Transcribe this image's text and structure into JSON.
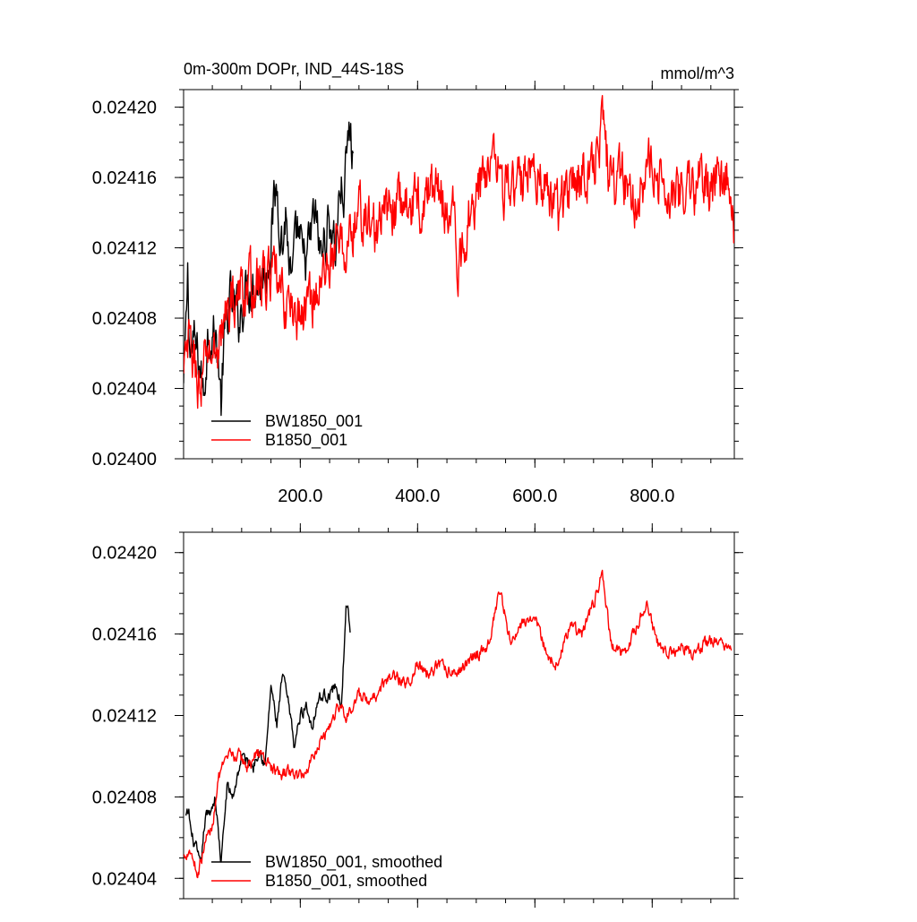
{
  "chart_data": [
    {
      "type": "line",
      "title": "0m-300m DOPr, IND_44S-18S",
      "units_label": "mmol/m^3",
      "xlabel": "",
      "ylabel": "",
      "xlim": [
        1,
        940
      ],
      "ylim": [
        0.024,
        0.02421
      ],
      "x_ticks": [
        200,
        400,
        600,
        800
      ],
      "x_tick_labels": [
        "200.0",
        "400.0",
        "600.0",
        "800.0"
      ],
      "y_ticks": [
        0.024,
        0.02404,
        0.02408,
        0.02412,
        0.02416,
        0.0242
      ],
      "y_tick_labels": [
        "0.02400",
        "0.02404",
        "0.02408",
        "0.02412",
        "0.02416",
        "0.02420"
      ],
      "legend_position": "bottom-left",
      "series": [
        {
          "name": "BW1850_001",
          "color": "#000000",
          "x_end": 290,
          "anchors": [
            [
              1,
              0.02404
            ],
            [
              5,
              0.02407
            ],
            [
              8,
              0.024105
            ],
            [
              12,
              0.02406
            ],
            [
              20,
              0.024065
            ],
            [
              30,
              0.02405
            ],
            [
              35,
              0.024035
            ],
            [
              42,
              0.02407
            ],
            [
              50,
              0.024075
            ],
            [
              60,
              0.02406
            ],
            [
              65,
              0.02403
            ],
            [
              70,
              0.024065
            ],
            [
              80,
              0.02409
            ],
            [
              95,
              0.02408
            ],
            [
              110,
              0.0241
            ],
            [
              130,
              0.0241
            ],
            [
              145,
              0.02411
            ],
            [
              150,
              0.02413
            ],
            [
              160,
              0.024155
            ],
            [
              170,
              0.02412
            ],
            [
              175,
              0.02414
            ],
            [
              185,
              0.024095
            ],
            [
              195,
              0.02413
            ],
            [
              205,
              0.02411
            ],
            [
              215,
              0.02412
            ],
            [
              225,
              0.02414
            ],
            [
              235,
              0.024115
            ],
            [
              245,
              0.02413
            ],
            [
              252,
              0.024135
            ],
            [
              260,
              0.02412
            ],
            [
              268,
              0.024155
            ],
            [
              275,
              0.02415
            ],
            [
              280,
              0.024175
            ],
            [
              285,
              0.02419
            ],
            [
              290,
              0.024165
            ]
          ],
          "noise": 1.2e-05
        },
        {
          "name": "B1850_001",
          "color": "#ff0000",
          "x_end": 940,
          "anchors": [
            [
              1,
              0.024045
            ],
            [
              10,
              0.024065
            ],
            [
              20,
              0.024055
            ],
            [
              30,
              0.024035
            ],
            [
              40,
              0.02406
            ],
            [
              55,
              0.02406
            ],
            [
              70,
              0.024075
            ],
            [
              80,
              0.02409
            ],
            [
              90,
              0.02409
            ],
            [
              100,
              0.024095
            ],
            [
              115,
              0.024098
            ],
            [
              130,
              0.0241
            ],
            [
              150,
              0.024105
            ],
            [
              170,
              0.02409
            ],
            [
              185,
              0.024085
            ],
            [
              200,
              0.02408
            ],
            [
              215,
              0.02409
            ],
            [
              230,
              0.024095
            ],
            [
              250,
              0.024115
            ],
            [
              265,
              0.02412
            ],
            [
              280,
              0.02412
            ],
            [
              300,
              0.02414
            ],
            [
              330,
              0.02413
            ],
            [
              360,
              0.024145
            ],
            [
              400,
              0.024145
            ],
            [
              430,
              0.024155
            ],
            [
              460,
              0.02414
            ],
            [
              470,
              0.024105
            ],
            [
              490,
              0.024145
            ],
            [
              520,
              0.024165
            ],
            [
              530,
              0.02419
            ],
            [
              545,
              0.024155
            ],
            [
              560,
              0.02415
            ],
            [
              580,
              0.02416
            ],
            [
              600,
              0.02417
            ],
            [
              620,
              0.02415
            ],
            [
              640,
              0.02414
            ],
            [
              660,
              0.02416
            ],
            [
              680,
              0.02416
            ],
            [
              700,
              0.02417
            ],
            [
              715,
              0.02419
            ],
            [
              730,
              0.024155
            ],
            [
              750,
              0.02416
            ],
            [
              770,
              0.02415
            ],
            [
              790,
              0.024165
            ],
            [
              810,
              0.024155
            ],
            [
              830,
              0.024155
            ],
            [
              850,
              0.02415
            ],
            [
              870,
              0.024155
            ],
            [
              890,
              0.024155
            ],
            [
              910,
              0.02416
            ],
            [
              930,
              0.02416
            ],
            [
              940,
              0.02413
            ]
          ],
          "noise": 1.3e-05
        }
      ]
    },
    {
      "type": "line",
      "title": "",
      "xlabel": "",
      "ylabel": "",
      "xlim": [
        1,
        940
      ],
      "ylim": [
        0.02403,
        0.02421
      ],
      "x_ticks": [
        200,
        400,
        600,
        800
      ],
      "x_tick_labels": [
        "",
        "",
        "",
        ""
      ],
      "y_ticks": [
        0.02404,
        0.02408,
        0.02412,
        0.02416,
        0.0242
      ],
      "y_tick_labels": [
        "0.02404",
        "0.02408",
        "0.02412",
        "0.02416",
        "0.02420"
      ],
      "legend_position": "bottom-left",
      "series": [
        {
          "name": "BW1850_001, smoothed",
          "color": "#000000",
          "x_end": 285,
          "anchors": [
            [
              5,
              0.02407
            ],
            [
              10,
              0.024072
            ],
            [
              15,
              0.02406
            ],
            [
              22,
              0.024055
            ],
            [
              30,
              0.024045
            ],
            [
              38,
              0.02407
            ],
            [
              45,
              0.024072
            ],
            [
              55,
              0.02408
            ],
            [
              65,
              0.024047
            ],
            [
              75,
              0.024085
            ],
            [
              85,
              0.02408
            ],
            [
              100,
              0.0241
            ],
            [
              120,
              0.024095
            ],
            [
              130,
              0.024105
            ],
            [
              140,
              0.024095
            ],
            [
              150,
              0.024135
            ],
            [
              155,
              0.024125
            ],
            [
              160,
              0.024115
            ],
            [
              170,
              0.02414
            ],
            [
              180,
              0.024125
            ],
            [
              190,
              0.024105
            ],
            [
              200,
              0.02412
            ],
            [
              210,
              0.024125
            ],
            [
              220,
              0.024115
            ],
            [
              230,
              0.024128
            ],
            [
              240,
              0.02413
            ],
            [
              250,
              0.02413
            ],
            [
              260,
              0.024135
            ],
            [
              270,
              0.024125
            ],
            [
              278,
              0.024172
            ],
            [
              282,
              0.02417
            ],
            [
              285,
              0.02416
            ]
          ],
          "noise": 2.5e-06
        },
        {
          "name": "B1850_001, smoothed",
          "color": "#ff0000",
          "x_end": 935,
          "anchors": [
            [
              1,
              0.02405
            ],
            [
              10,
              0.024055
            ],
            [
              15,
              0.024052
            ],
            [
              25,
              0.024042
            ],
            [
              40,
              0.02406
            ],
            [
              50,
              0.024065
            ],
            [
              60,
              0.02409
            ],
            [
              70,
              0.024095
            ],
            [
              80,
              0.0241
            ],
            [
              95,
              0.0241
            ],
            [
              110,
              0.024095
            ],
            [
              130,
              0.024102
            ],
            [
              150,
              0.024095
            ],
            [
              165,
              0.02409
            ],
            [
              180,
              0.024093
            ],
            [
              195,
              0.02409
            ],
            [
              210,
              0.024092
            ],
            [
              220,
              0.0241
            ],
            [
              235,
              0.024108
            ],
            [
              250,
              0.024115
            ],
            [
              265,
              0.024125
            ],
            [
              280,
              0.02412
            ],
            [
              300,
              0.02413
            ],
            [
              320,
              0.024125
            ],
            [
              340,
              0.024135
            ],
            [
              360,
              0.02414
            ],
            [
              380,
              0.024135
            ],
            [
              400,
              0.024145
            ],
            [
              420,
              0.02414
            ],
            [
              440,
              0.024145
            ],
            [
              460,
              0.02414
            ],
            [
              480,
              0.024145
            ],
            [
              500,
              0.02415
            ],
            [
              520,
              0.024155
            ],
            [
              540,
              0.02418
            ],
            [
              560,
              0.024155
            ],
            [
              580,
              0.024165
            ],
            [
              600,
              0.02417
            ],
            [
              620,
              0.02415
            ],
            [
              640,
              0.024145
            ],
            [
              660,
              0.024165
            ],
            [
              680,
              0.02416
            ],
            [
              700,
              0.024175
            ],
            [
              715,
              0.02419
            ],
            [
              730,
              0.024155
            ],
            [
              750,
              0.02415
            ],
            [
              770,
              0.02416
            ],
            [
              790,
              0.024175
            ],
            [
              810,
              0.024155
            ],
            [
              830,
              0.02415
            ],
            [
              850,
              0.024155
            ],
            [
              870,
              0.02415
            ],
            [
              890,
              0.024155
            ],
            [
              910,
              0.024157
            ],
            [
              930,
              0.024155
            ],
            [
              935,
              0.02415
            ]
          ],
          "noise": 2.5e-06
        }
      ]
    }
  ]
}
